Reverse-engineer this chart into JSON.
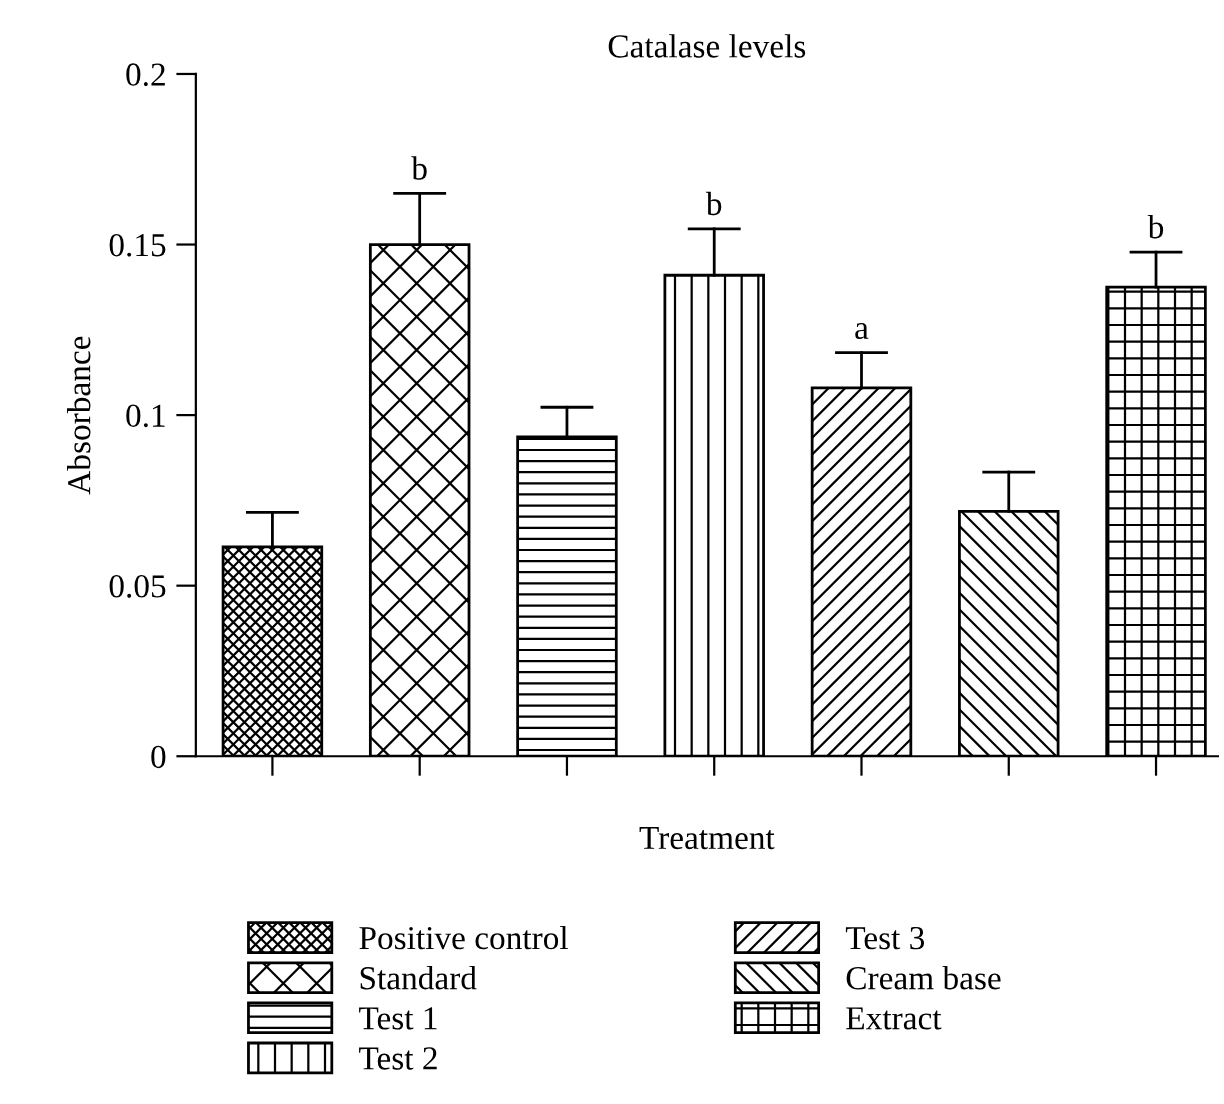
{
  "chart_data": {
    "type": "bar",
    "title": "Catalase levels",
    "xlabel": "Treatment",
    "ylabel": "Absorbance",
    "categories": [
      null,
      null,
      null,
      null,
      null,
      null,
      null
    ],
    "series": [
      {
        "name": "Positive control",
        "color": "#000000",
        "values": [
          0.0614,
          null,
          null,
          null,
          null,
          null,
          null
        ],
        "errors": [
          [
            0.0614,
            0.0715
          ],
          null,
          null,
          null,
          null,
          null,
          null
        ]
      },
      {
        "name": "Standard",
        "color": "#000000",
        "values": [
          null,
          0.15,
          null,
          null,
          null,
          null,
          null
        ],
        "errors": [
          null,
          [
            0.15,
            0.165
          ],
          null,
          null,
          null,
          null,
          null
        ],
        "value_labels": [
          null,
          "b",
          null,
          null,
          null,
          null,
          null
        ]
      },
      {
        "name": "Test 1",
        "color": "#000000",
        "values": [
          null,
          null,
          0.0936,
          null,
          null,
          null,
          null
        ],
        "errors": [
          null,
          null,
          [
            0.0936,
            0.1023
          ],
          null,
          null,
          null,
          null
        ]
      },
      {
        "name": "Test 2",
        "color": "#000000",
        "values": [
          null,
          null,
          null,
          0.141,
          null,
          null,
          null
        ],
        "errors": [
          null,
          null,
          null,
          [
            0.141,
            0.1546
          ],
          null,
          null,
          null
        ],
        "value_labels": [
          null,
          null,
          null,
          "b",
          null,
          null,
          null
        ]
      },
      {
        "name": "Test 3",
        "color": "#000000",
        "values": [
          null,
          null,
          null,
          null,
          0.108,
          null,
          null
        ],
        "errors": [
          null,
          null,
          null,
          null,
          [
            0.108,
            0.1183
          ],
          null,
          null
        ],
        "value_labels": [
          null,
          null,
          null,
          null,
          "a",
          null,
          null
        ]
      },
      {
        "name": "Cream base",
        "color": "#000000",
        "values": [
          null,
          null,
          null,
          null,
          null,
          0.0718,
          null
        ],
        "errors": [
          null,
          null,
          null,
          null,
          null,
          [
            0.0718,
            0.0833
          ],
          null
        ]
      },
      {
        "name": "Extract",
        "color": "#000000",
        "values": [
          null,
          null,
          null,
          null,
          null,
          null,
          0.1375
        ],
        "errors": [
          null,
          null,
          null,
          null,
          null,
          null,
          [
            0.1375,
            0.1478
          ]
        ],
        "value_labels": [
          null,
          null,
          null,
          null,
          null,
          null,
          "b"
        ]
      }
    ],
    "ylim": [
      0,
      0.2
    ],
    "yticks": [
      0,
      0.05,
      0.1,
      0.15,
      0.2
    ],
    "tick_labels": "y",
    "grid": false,
    "legend": "bottom"
  }
}
